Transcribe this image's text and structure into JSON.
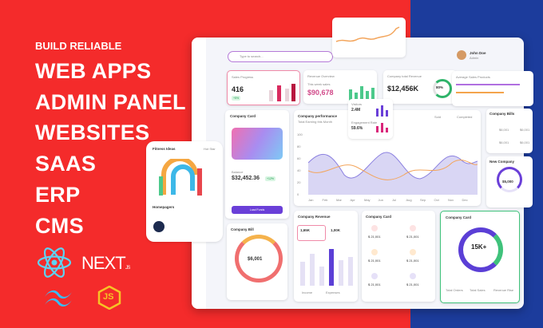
{
  "hero": {
    "kicker": "BUILD RELIABLE",
    "lines": [
      "WEB APPS",
      "ADMIN PANEL",
      "WEBSITES",
      "SAAS",
      "ERP",
      "CMS"
    ]
  },
  "logos": {
    "next": "NEXT",
    "next_suffix": ".JS",
    "js": "JS"
  },
  "dashboard": {
    "search": "Type to search...",
    "user": {
      "name": "John Doe",
      "role": "Admin"
    },
    "cards": [
      {
        "title": "Sales Progress",
        "value": "416",
        "badge": "+5%"
      },
      {
        "title": "Revenue Overview",
        "subtitle": "This week sales",
        "value": "$90,678"
      },
      {
        "title": "Company total Revenue",
        "value": "$12,456K",
        "badge": "80%"
      },
      {
        "title": "Average Sales Products"
      }
    ],
    "company_card": {
      "title": "Company Card",
      "balance_label": "Balance",
      "balance": "$32,452.36",
      "badge": "+12%",
      "button": "Load Funds"
    },
    "performance": {
      "title": "Company performance",
      "subtitle": "Total Earning this Month",
      "legend": [
        "Sold",
        "Completed"
      ],
      "yticks": [
        "100",
        "80",
        "60",
        "40",
        "20",
        "0"
      ],
      "months": [
        "Jan",
        "Feb",
        "Mar",
        "Apr",
        "May",
        "Jun",
        "Jul",
        "Aug",
        "Sep",
        "Oct",
        "Nov",
        "Dec"
      ]
    },
    "stats": {
      "label1": "Visitors",
      "value1": "2.4M",
      "label2": "Engagement Rate",
      "value2": "59.6%"
    },
    "revenue": {
      "title": "Company Revenue",
      "v1": "1,65K",
      "v2": "1,00K",
      "legend": [
        "Income",
        "Expenses"
      ]
    },
    "company_card2": {
      "title": "Company Card",
      "items": [
        "$ 21,001",
        "$ 21,001",
        "$ 21,001",
        "$ 21,001",
        "$ 21,001",
        "$ 21,001"
      ]
    },
    "company_card3": {
      "title": "Company Card",
      "value": "15K+",
      "stats": [
        "Total Orders",
        "Total Sales",
        "Revenue Rise"
      ]
    },
    "bill": {
      "title": "Company Bill",
      "value": "$6,001"
    },
    "company_bills": {
      "title": "Company Bills",
      "items": [
        "$6,001",
        "$6,001",
        "$6,001",
        "$6,001"
      ]
    },
    "new_company": {
      "title": "New Company",
      "value": "$5,000"
    },
    "phone": {
      "title": "Fitness Ideas",
      "tag": "Hot Star",
      "label": "Homepagers"
    }
  }
}
